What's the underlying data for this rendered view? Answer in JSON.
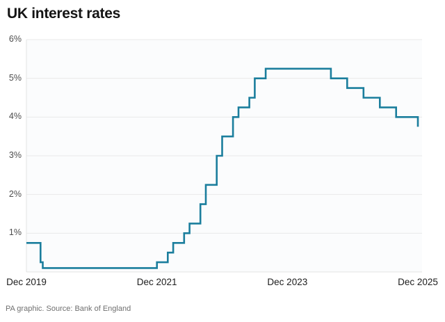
{
  "header": {
    "title": "UK interest rates"
  },
  "footer": {
    "credit": "PA graphic. Source: Bank of England"
  },
  "chart_data": {
    "type": "line",
    "subtype": "step",
    "title": "UK interest rates",
    "legend": "none",
    "grid": true,
    "ylabel": "",
    "xlabel": "",
    "ylim": [
      0,
      6
    ],
    "xlim_months_from_dec_2019": [
      0,
      72
    ],
    "y_axis": {
      "ticks": [
        {
          "value": 6,
          "label": "6%"
        },
        {
          "value": 5,
          "label": "5%"
        },
        {
          "value": 4,
          "label": "4%"
        },
        {
          "value": 3,
          "label": "3%"
        },
        {
          "value": 2,
          "label": "2%"
        },
        {
          "value": 1,
          "label": "1%"
        }
      ]
    },
    "x_axis": {
      "ticks": [
        {
          "month": 0,
          "label": "Dec 2019"
        },
        {
          "month": 24,
          "label": "Dec 2021"
        },
        {
          "month": 48,
          "label": "Dec 2023"
        },
        {
          "month": 72,
          "label": "Dec 2025"
        }
      ]
    },
    "series": [
      {
        "name": "UK interest rate",
        "color": "#1b7e9d",
        "points": [
          {
            "date": "Dec 2019",
            "month": 0,
            "rate": 0.75
          },
          {
            "date": "Mar 2020",
            "month": 2.6,
            "rate": 0.25
          },
          {
            "date": "Mar 2020",
            "month": 3.0,
            "rate": 0.1
          },
          {
            "date": "Dec 2021",
            "month": 24,
            "rate": 0.25
          },
          {
            "date": "Feb 2022",
            "month": 26,
            "rate": 0.5
          },
          {
            "date": "Mar 2022",
            "month": 27,
            "rate": 0.75
          },
          {
            "date": "May 2022",
            "month": 29,
            "rate": 1.0
          },
          {
            "date": "Jun 2022",
            "month": 30,
            "rate": 1.25
          },
          {
            "date": "Aug 2022",
            "month": 32,
            "rate": 1.75
          },
          {
            "date": "Sep 2022",
            "month": 33,
            "rate": 2.25
          },
          {
            "date": "Nov 2022",
            "month": 35,
            "rate": 3.0
          },
          {
            "date": "Dec 2022",
            "month": 36,
            "rate": 3.5
          },
          {
            "date": "Feb 2023",
            "month": 38,
            "rate": 4.0
          },
          {
            "date": "Mar 2023",
            "month": 39,
            "rate": 4.25
          },
          {
            "date": "May 2023",
            "month": 41,
            "rate": 4.5
          },
          {
            "date": "Jun 2023",
            "month": 42,
            "rate": 5.0
          },
          {
            "date": "Aug 2023",
            "month": 44,
            "rate": 5.25
          },
          {
            "date": "Aug 2024",
            "month": 56,
            "rate": 5.0
          },
          {
            "date": "Nov 2024",
            "month": 59,
            "rate": 4.75
          },
          {
            "date": "Feb 2025",
            "month": 62,
            "rate": 4.5
          },
          {
            "date": "May 2025",
            "month": 65,
            "rate": 4.25
          },
          {
            "date": "Aug 2025",
            "month": 68,
            "rate": 4.0
          },
          {
            "date": "Dec 2025",
            "month": 72,
            "rate": 3.75
          }
        ]
      }
    ],
    "colors": {
      "line": "#1b7e9d",
      "gridline": "#e9e9e9",
      "axis_border": "#e3e3e3",
      "plot_background": "#fbfcfd",
      "y_label": "#4d4d4d",
      "x_label": "#1c1c1c"
    }
  }
}
